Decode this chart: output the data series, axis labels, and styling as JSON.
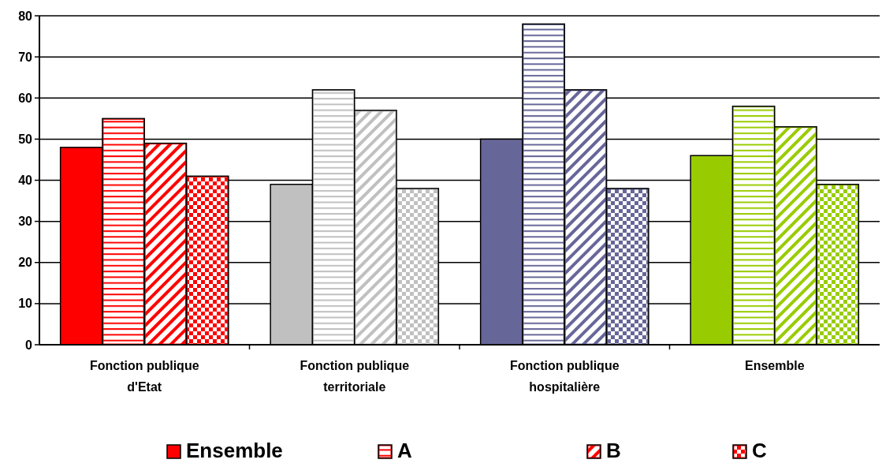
{
  "chart_data": {
    "type": "bar",
    "categories": [
      "Fonction publique d'Etat",
      "Fonction publique territoriale",
      "Fonction publique hospitalière",
      "Ensemble"
    ],
    "series": [
      {
        "name": "Ensemble",
        "colors": [
          "#ff0000",
          "#c0c0c0",
          "#666699",
          "#99cc00"
        ],
        "values": [
          48,
          39,
          50,
          46
        ]
      },
      {
        "name": "A",
        "colors": [
          "#ff0000",
          "#c0c0c0",
          "#666699",
          "#99cc00"
        ],
        "values": [
          55,
          62,
          78,
          58
        ]
      },
      {
        "name": "B",
        "colors": [
          "#ff0000",
          "#c0c0c0",
          "#666699",
          "#99cc00"
        ],
        "values": [
          49,
          57,
          62,
          53
        ]
      },
      {
        "name": "C",
        "colors": [
          "#ff0000",
          "#c0c0c0",
          "#666699",
          "#99cc00"
        ],
        "values": [
          41,
          38,
          38,
          39
        ]
      }
    ],
    "ylim": [
      0,
      80
    ],
    "yticks": [
      0,
      10,
      20,
      30,
      40,
      50,
      60,
      70,
      80
    ],
    "grid": "y",
    "legend": "bottom"
  }
}
